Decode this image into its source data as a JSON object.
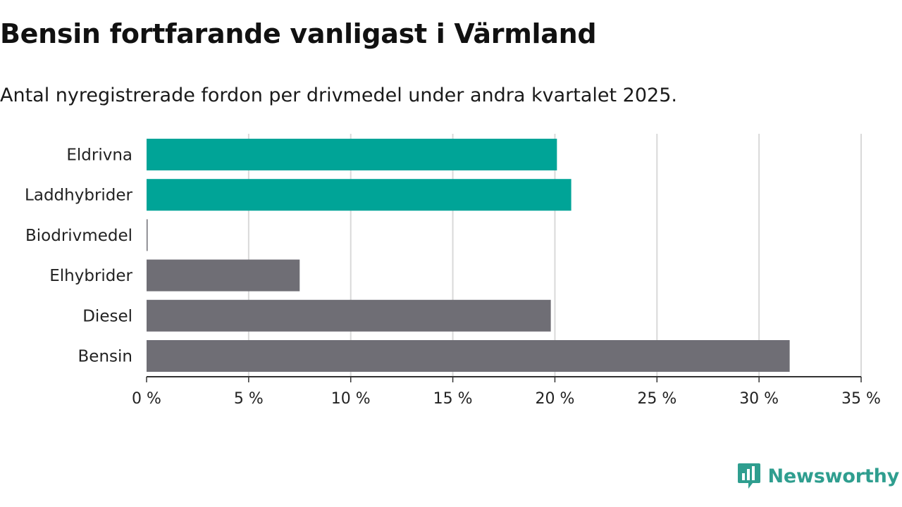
{
  "title": "Bensin fortfarande vanligast i Värmland",
  "subtitle": "Antal nyregistrerade fordon per drivmedel under andra kvartalet 2025.",
  "brand": {
    "name": "Newsworthy",
    "icon": "bar-chart-speech-bubble-icon"
  },
  "colors": {
    "highlight": "#00a497",
    "default": "#6f6e75",
    "grid": "#d9d9d9",
    "axis": "#333333"
  },
  "chart_data": {
    "type": "bar",
    "orientation": "horizontal",
    "categories": [
      "Eldrivna",
      "Laddhybrider",
      "Biodrivmedel",
      "Elhybrider",
      "Diesel",
      "Bensin"
    ],
    "values": [
      20.1,
      20.8,
      0.05,
      7.5,
      19.8,
      31.5
    ],
    "highlighted": [
      true,
      true,
      false,
      false,
      false,
      false
    ],
    "xlim": [
      0,
      35
    ],
    "xticks": [
      0,
      5,
      10,
      15,
      20,
      25,
      30,
      35
    ],
    "xtick_labels": [
      "0 %",
      "5 %",
      "10 %",
      "15 %",
      "20 %",
      "25 %",
      "30 %",
      "35 %"
    ],
    "unit": "%",
    "grid": true
  }
}
